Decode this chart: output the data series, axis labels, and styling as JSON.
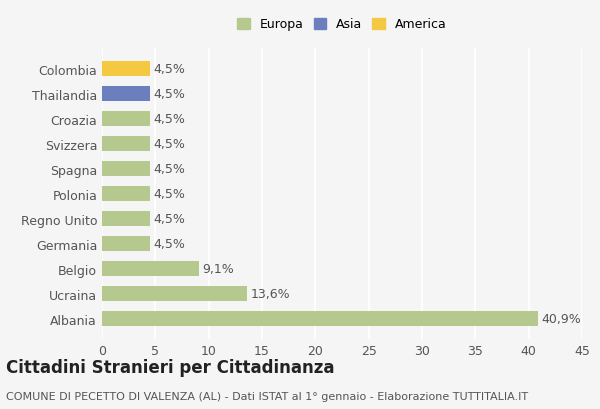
{
  "categories": [
    "Colombia",
    "Thailandia",
    "Croazia",
    "Svizzera",
    "Spagna",
    "Polonia",
    "Regno Unito",
    "Germania",
    "Belgio",
    "Ucraina",
    "Albania"
  ],
  "values": [
    4.5,
    4.5,
    4.5,
    4.5,
    4.5,
    4.5,
    4.5,
    4.5,
    9.1,
    13.6,
    40.9
  ],
  "labels": [
    "4,5%",
    "4,5%",
    "4,5%",
    "4,5%",
    "4,5%",
    "4,5%",
    "4,5%",
    "4,5%",
    "9,1%",
    "13,6%",
    "40,9%"
  ],
  "bar_colors": [
    "#f5c842",
    "#6b7fbf",
    "#b5c98e",
    "#b5c98e",
    "#b5c98e",
    "#b5c98e",
    "#b5c98e",
    "#b5c98e",
    "#b5c98e",
    "#b5c98e",
    "#b5c98e"
  ],
  "legend_labels": [
    "Europa",
    "Asia",
    "America"
  ],
  "legend_colors": [
    "#b5c98e",
    "#6b7fbf",
    "#f5c842"
  ],
  "title": "Cittadini Stranieri per Cittadinanza",
  "subtitle": "COMUNE DI PECETTO DI VALENZA (AL) - Dati ISTAT al 1° gennaio - Elaborazione TUTTITALIA.IT",
  "xlim": [
    0,
    45
  ],
  "xticks": [
    0,
    5,
    10,
    15,
    20,
    25,
    30,
    35,
    40,
    45
  ],
  "background_color": "#f5f5f5",
  "grid_color": "#ffffff",
  "bar_label_fontsize": 9,
  "title_fontsize": 12,
  "subtitle_fontsize": 8,
  "tick_label_fontsize": 9
}
